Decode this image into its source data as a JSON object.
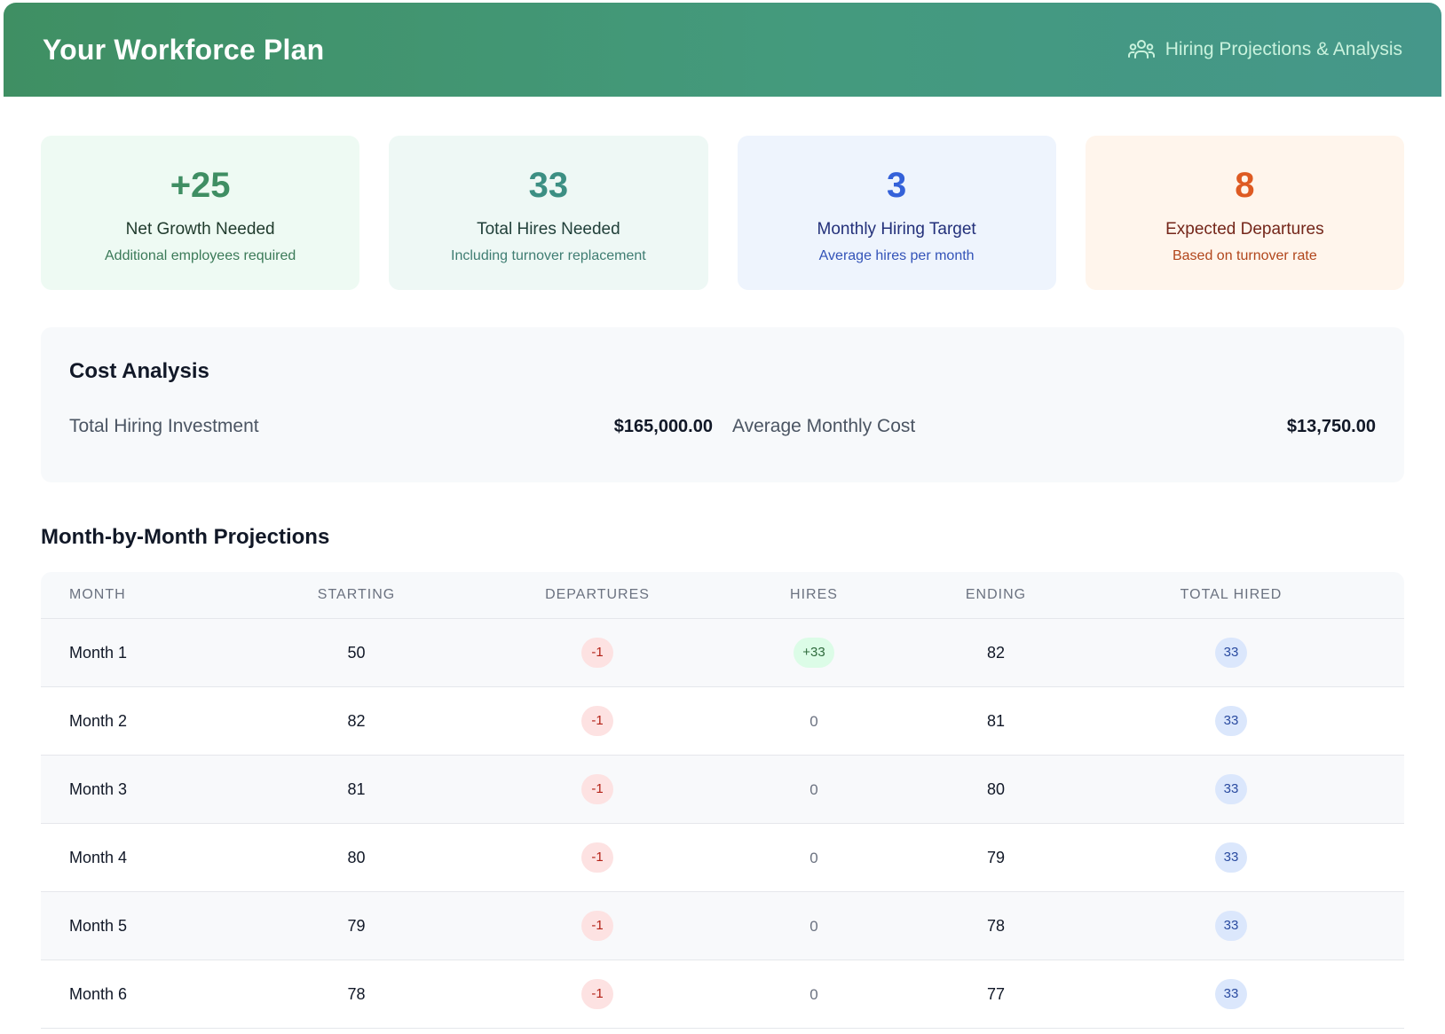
{
  "header": {
    "title": "Your Workforce Plan",
    "subtitle": "Hiring Projections & Analysis",
    "icon": "users-icon"
  },
  "cards": [
    {
      "value": "+25",
      "label": "Net Growth Needed",
      "note": "Additional employees required",
      "theme": "green"
    },
    {
      "value": "33",
      "label": "Total Hires Needed",
      "note": "Including turnover replacement",
      "theme": "teal"
    },
    {
      "value": "3",
      "label": "Monthly Hiring Target",
      "note": "Average hires per month",
      "theme": "blue"
    },
    {
      "value": "8",
      "label": "Expected Departures",
      "note": "Based on turnover rate",
      "theme": "orange"
    }
  ],
  "cost": {
    "title": "Cost Analysis",
    "total_label": "Total Hiring Investment",
    "total_value": "$165,000.00",
    "monthly_label": "Average Monthly Cost",
    "monthly_value": "$13,750.00"
  },
  "projections": {
    "title": "Month-by-Month Projections",
    "columns": [
      "MONTH",
      "STARTING",
      "DEPARTURES",
      "HIRES",
      "ENDING",
      "TOTAL HIRED"
    ],
    "rows": [
      {
        "month": "Month 1",
        "starting": "50",
        "departures": "-1",
        "hires": "+33",
        "ending": "82",
        "total_hired": "33"
      },
      {
        "month": "Month 2",
        "starting": "82",
        "departures": "-1",
        "hires": "0",
        "ending": "81",
        "total_hired": "33"
      },
      {
        "month": "Month 3",
        "starting": "81",
        "departures": "-1",
        "hires": "0",
        "ending": "80",
        "total_hired": "33"
      },
      {
        "month": "Month 4",
        "starting": "80",
        "departures": "-1",
        "hires": "0",
        "ending": "79",
        "total_hired": "33"
      },
      {
        "month": "Month 5",
        "starting": "79",
        "departures": "-1",
        "hires": "0",
        "ending": "78",
        "total_hired": "33"
      },
      {
        "month": "Month 6",
        "starting": "78",
        "departures": "-1",
        "hires": "0",
        "ending": "77",
        "total_hired": "33"
      }
    ]
  }
}
